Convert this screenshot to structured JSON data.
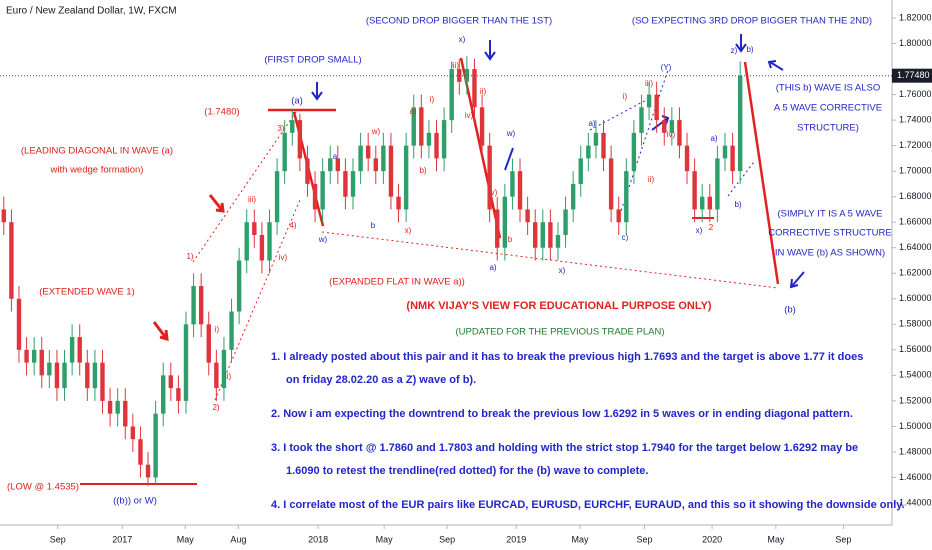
{
  "chart_data": {
    "type": "candlestick",
    "title": "Euro / New Zealand Dollar, 1W, FXCM",
    "up_color": "#2e9e6a",
    "down_color": "#e0343d",
    "open": [
      1.67,
      1.66,
      1.6,
      1.56,
      1.55,
      1.56,
      1.54,
      1.55,
      1.53,
      1.55,
      1.57,
      1.55,
      1.53,
      1.55,
      1.52,
      1.51,
      1.52,
      1.5,
      1.49,
      1.47,
      1.46,
      1.51,
      1.54,
      1.53,
      1.52,
      1.58,
      1.61,
      1.58,
      1.55,
      1.53,
      1.56,
      1.59,
      1.63,
      1.66,
      1.65,
      1.63,
      1.66,
      1.7,
      1.73,
      1.74,
      1.71,
      1.69,
      1.67,
      1.7,
      1.71,
      1.7,
      1.68,
      1.7,
      1.72,
      1.71,
      1.7,
      1.72,
      1.68,
      1.67,
      1.72,
      1.75,
      1.72,
      1.73,
      1.71,
      1.74,
      1.78,
      1.77,
      1.78,
      1.75,
      1.72,
      1.67,
      1.64,
      1.68,
      1.7,
      1.67,
      1.66,
      1.64,
      1.66,
      1.64,
      1.65,
      1.67,
      1.69,
      1.71,
      1.72,
      1.73,
      1.71,
      1.67,
      1.66,
      1.7,
      1.73,
      1.75,
      1.76,
      1.74,
      1.73,
      1.74,
      1.72,
      1.7,
      1.67,
      1.68,
      1.67,
      1.71,
      1.72,
      1.7
    ],
    "high": [
      1.68,
      1.67,
      1.61,
      1.57,
      1.57,
      1.57,
      1.56,
      1.56,
      1.56,
      1.58,
      1.58,
      1.56,
      1.56,
      1.56,
      1.53,
      1.53,
      1.53,
      1.51,
      1.5,
      1.48,
      1.52,
      1.55,
      1.55,
      1.54,
      1.59,
      1.62,
      1.62,
      1.59,
      1.56,
      1.57,
      1.6,
      1.64,
      1.67,
      1.67,
      1.66,
      1.67,
      1.71,
      1.74,
      1.748,
      1.745,
      1.72,
      1.7,
      1.71,
      1.72,
      1.72,
      1.71,
      1.71,
      1.73,
      1.73,
      1.72,
      1.73,
      1.73,
      1.69,
      1.73,
      1.76,
      1.76,
      1.74,
      1.74,
      1.75,
      1.786,
      1.788,
      1.79,
      1.788,
      1.76,
      1.73,
      1.68,
      1.69,
      1.71,
      1.71,
      1.68,
      1.67,
      1.67,
      1.67,
      1.66,
      1.68,
      1.7,
      1.72,
      1.73,
      1.74,
      1.74,
      1.72,
      1.68,
      1.71,
      1.74,
      1.76,
      1.77,
      1.77,
      1.75,
      1.75,
      1.75,
      1.73,
      1.71,
      1.69,
      1.69,
      1.72,
      1.73,
      1.73,
      1.786
    ],
    "low": [
      1.65,
      1.59,
      1.55,
      1.54,
      1.54,
      1.53,
      1.53,
      1.52,
      1.52,
      1.54,
      1.54,
      1.52,
      1.52,
      1.51,
      1.5,
      1.5,
      1.49,
      1.48,
      1.46,
      1.4535,
      1.455,
      1.5,
      1.52,
      1.51,
      1.51,
      1.57,
      1.57,
      1.54,
      1.52,
      1.52,
      1.55,
      1.58,
      1.62,
      1.64,
      1.62,
      1.62,
      1.65,
      1.69,
      1.72,
      1.7,
      1.68,
      1.66,
      1.66,
      1.69,
      1.69,
      1.67,
      1.67,
      1.69,
      1.7,
      1.69,
      1.69,
      1.67,
      1.66,
      1.66,
      1.71,
      1.71,
      1.71,
      1.7,
      1.7,
      1.73,
      1.76,
      1.76,
      1.74,
      1.71,
      1.66,
      1.63,
      1.63,
      1.67,
      1.66,
      1.65,
      1.63,
      1.63,
      1.63,
      1.63,
      1.64,
      1.66,
      1.68,
      1.7,
      1.71,
      1.7,
      1.66,
      1.65,
      1.65,
      1.69,
      1.72,
      1.74,
      1.73,
      1.72,
      1.72,
      1.71,
      1.69,
      1.66,
      1.66,
      1.66,
      1.66,
      1.7,
      1.69,
      1.69
    ],
    "close": [
      1.66,
      1.6,
      1.56,
      1.55,
      1.56,
      1.54,
      1.55,
      1.53,
      1.55,
      1.57,
      1.55,
      1.53,
      1.55,
      1.52,
      1.51,
      1.52,
      1.5,
      1.49,
      1.47,
      1.46,
      1.51,
      1.54,
      1.53,
      1.52,
      1.58,
      1.61,
      1.58,
      1.55,
      1.53,
      1.56,
      1.59,
      1.63,
      1.66,
      1.65,
      1.63,
      1.66,
      1.7,
      1.73,
      1.74,
      1.71,
      1.69,
      1.67,
      1.7,
      1.71,
      1.7,
      1.68,
      1.7,
      1.72,
      1.71,
      1.7,
      1.72,
      1.68,
      1.67,
      1.72,
      1.75,
      1.72,
      1.73,
      1.71,
      1.74,
      1.78,
      1.77,
      1.78,
      1.75,
      1.72,
      1.67,
      1.64,
      1.68,
      1.7,
      1.67,
      1.66,
      1.64,
      1.66,
      1.64,
      1.65,
      1.67,
      1.69,
      1.71,
      1.72,
      1.73,
      1.71,
      1.67,
      1.66,
      1.7,
      1.73,
      1.75,
      1.76,
      1.74,
      1.73,
      1.74,
      1.72,
      1.7,
      1.67,
      1.68,
      1.67,
      1.71,
      1.72,
      1.7,
      1.7748
    ],
    "last_price": {
      "value": 1.7748,
      "label": "1.77480"
    },
    "xlim": [
      -0.5,
      117
    ],
    "xticks": [
      {
        "value": 7.1,
        "label": "Sep"
      },
      {
        "value": 15.6,
        "label": "2017"
      },
      {
        "value": 23.9,
        "label": "May"
      },
      {
        "value": 30.9,
        "label": "Aug"
      },
      {
        "value": 41.4,
        "label": "2018"
      },
      {
        "value": 50.1,
        "label": "May"
      },
      {
        "value": 58.4,
        "label": "Sep"
      },
      {
        "value": 67.5,
        "label": "2019"
      },
      {
        "value": 75.9,
        "label": "May"
      },
      {
        "value": 84.4,
        "label": "Sep"
      },
      {
        "value": 93.3,
        "label": "2020"
      },
      {
        "value": 101.7,
        "label": "May"
      },
      {
        "value": 110.6,
        "label": "Sep"
      }
    ],
    "ylim": [
      1.44,
      1.82
    ],
    "yticks": [
      {
        "value": 1.44,
        "label": "1.44000"
      },
      {
        "value": 1.46,
        "label": "1.46000"
      },
      {
        "value": 1.48,
        "label": "1.48000"
      },
      {
        "value": 1.5,
        "label": "1.50000"
      },
      {
        "value": 1.52,
        "label": "1.52000"
      },
      {
        "value": 1.54,
        "label": "1.54000"
      },
      {
        "value": 1.56,
        "label": "1.56000"
      },
      {
        "value": 1.58,
        "label": "1.58000"
      },
      {
        "value": 1.6,
        "label": "1.60000"
      },
      {
        "value": 1.62,
        "label": "1.62000"
      },
      {
        "value": 1.64,
        "label": "1.64000"
      },
      {
        "value": 1.66,
        "label": "1.66000"
      },
      {
        "value": 1.68,
        "label": "1.68000"
      },
      {
        "value": 1.7,
        "label": "1.70000"
      },
      {
        "value": 1.72,
        "label": "1.72000"
      },
      {
        "value": 1.74,
        "label": "1.74000"
      },
      {
        "value": 1.76,
        "label": "1.76000"
      },
      {
        "value": 1.8,
        "label": "1.80000"
      },
      {
        "value": 1.82,
        "label": "1.82000"
      }
    ],
    "annotations": [
      "(SECOND DROP BIGGER THAN THE 1ST)",
      "(SO EXPECTING 3RD DROP BIGGER THAN THE 2ND)",
      "(FIRST DROP SMALL)",
      "(1.7480)",
      "(a)",
      "(LEADING DIAGONAL IN WAVE (a)",
      "with wedge formation)",
      "(EXTENDED WAVE 1)",
      "(EXPANDED FLAT IN WAVE a))",
      "(NMK VIJAY'S VIEW FOR EDUCATIONAL PURPOSE ONLY)",
      "(UPDATED FOR THE PREVIOUS TRADE PLAN)",
      "(THIS b) WAVE IS ALSO",
      "A 5 WAVE CORRECTIVE",
      "STRUCTURE)",
      "(SIMPLY IT IS A 5 WAVE",
      "CORRECTIVE STRUCTURE",
      "IN WAVE (b) AS SHOWN)",
      "(b)",
      "(LOW @ 1.4535)",
      "((b)) or W)"
    ],
    "wave_labels": [
      "1)",
      "2)",
      "3)",
      "4)",
      "iii)",
      "iv)",
      "i)",
      "ii)",
      "w)",
      "a",
      "b",
      "w)",
      "x)",
      "x)",
      "a)",
      "b",
      "w)",
      "x)",
      "(Y)",
      "x)",
      "2",
      "z)",
      "b)",
      "a)",
      "b)",
      "a)",
      "c)",
      "iii)",
      "i)",
      "ii)",
      "iv)",
      "ii)",
      "iii)",
      "i)",
      "a)",
      "b)",
      "iv)",
      "v)"
    ],
    "notes": [
      "1. I already posted about this pair and it has to break the previous high 1.7693 and the target is above 1.77 it does",
      "on friday 28.02.20 as a Z) wave of b).",
      "2. Now i am expecting the downtrend to break the previous low 1.6292 in 5 waves or in ending diagonal pattern.",
      "3. I took the short @ 1.7860 and 1.7803 and holding with the strict stop 1.7940 for the target below 1.6292 may be",
      "1.6090 to retest the trendline(red dotted) for the (b) wave to complete.",
      "4. I correlate most of the EUR pairs like EURCAD, EURUSD, EURCHF, EURAUD, and this so it showing the downside only."
    ]
  }
}
